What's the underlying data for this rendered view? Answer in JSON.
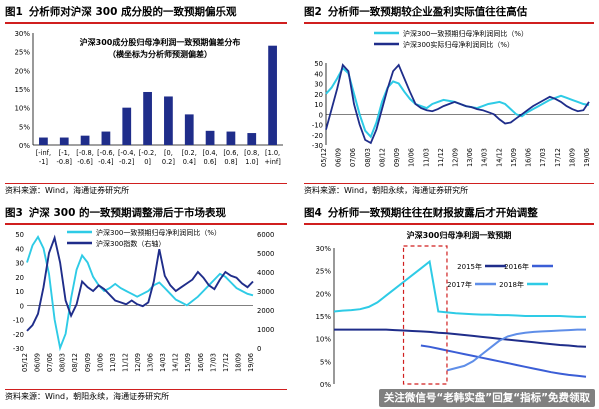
{
  "panels": [
    {
      "num": "图1",
      "title": "分析师对沪深 300 成分股的一致预期偏乐观",
      "source": "资料来源：Wind，海通证券研究所"
    },
    {
      "num": "图2",
      "title": "分析师一致预期较企业盈利实际值往往高估",
      "source": "资料来源：Wind，朝阳永续，海通证券研究所"
    },
    {
      "num": "图3",
      "title": "沪深 300 的一致预期调整滞后于市场表现",
      "source": "资料来源：Wind，朝阳永续，海通证券研究所"
    },
    {
      "num": "图4",
      "title": "分析师一致预期往往在财报披露后才开始调整",
      "source": "资料来源：Wind，朝阳永续，海通证券研究所"
    }
  ],
  "watermark": "关注微信号“老韩实盘”回复“指标”免费领取",
  "colors": {
    "navy": "#1f2d8a",
    "cyan": "#2ecbe6",
    "red": "#d01f1f",
    "royal": "#3b5ed6"
  },
  "chart_data": [
    {
      "type": "bar",
      "title": "沪深300成分股归母净利润一致预期偏差分布",
      "subtitle": "（横坐标为分析师预测偏差）",
      "categories": [
        "[-inf, -1]",
        "[-1, -0.8]",
        "[-0.8, -0.6]",
        "[-0.6, -0.4]",
        "[-0.4, -0.2]",
        "[-0.2, 0]",
        "[0, 0.2]",
        "[0.2, 0.4]",
        "[0.4, 0.6]",
        "[0.6, 0.8]",
        "[0.8, 1.0]",
        "[1.0, +inf]"
      ],
      "values": [
        2.0,
        2.0,
        2.5,
        3.6,
        10.0,
        14.2,
        13.0,
        8.2,
        3.8,
        3.6,
        3.2,
        26.6
      ],
      "yticks": [
        "0%",
        "5%",
        "10%",
        "15%",
        "20%",
        "25%",
        "30%"
      ],
      "ylim": [
        0,
        30
      ],
      "color": "#1f2d8a"
    },
    {
      "type": "line",
      "xticks": [
        "05/12",
        "06/09",
        "07/06",
        "08/03",
        "08/12",
        "09/09",
        "10/06",
        "11/03",
        "11/12",
        "12/09",
        "13/06",
        "14/03",
        "14/12",
        "15/09",
        "16/06",
        "17/03",
        "17/12",
        "18/09",
        "19/06"
      ],
      "yticks": [
        "-30",
        "-20",
        "-10",
        "0",
        "10",
        "20",
        "30",
        "40",
        "50"
      ],
      "ylim": [
        -30,
        50
      ],
      "series": [
        {
          "name": "沪深300一致预期归母净利润同比（%）",
          "color": "#2ecbe6",
          "values": [
            20,
            26,
            35,
            45,
            40,
            20,
            0,
            -16,
            -22,
            -8,
            12,
            26,
            32,
            30,
            22,
            15,
            10,
            8,
            6,
            10,
            12,
            14,
            13,
            12,
            10,
            8,
            7,
            6,
            8,
            10,
            11,
            12,
            10,
            5,
            0,
            -2,
            2,
            5,
            8,
            11,
            14,
            16,
            18,
            16,
            14,
            12,
            10,
            9
          ]
        },
        {
          "name": "沪深300实际归母净利润同比（%）",
          "color": "#1f2d8a",
          "values": [
            -15,
            5,
            25,
            48,
            42,
            10,
            -10,
            -25,
            -28,
            -15,
            5,
            25,
            42,
            48,
            35,
            22,
            10,
            6,
            4,
            3,
            5,
            8,
            10,
            12,
            10,
            8,
            7,
            5,
            4,
            2,
            0,
            -5,
            -9,
            -8,
            -4,
            0,
            4,
            8,
            11,
            14,
            17,
            15,
            12,
            8,
            5,
            3,
            4,
            12
          ]
        }
      ]
    },
    {
      "type": "line",
      "xticks": [
        "05/12",
        "06/09",
        "07/06",
        "08/03",
        "08/12",
        "09/09",
        "10/06",
        "11/03",
        "11/12",
        "12/09",
        "13/06",
        "14/03",
        "14/12",
        "15/09",
        "16/06",
        "17/03",
        "17/12",
        "18/09",
        "19/06"
      ],
      "yticks_left": [
        "-30",
        "-20",
        "-10",
        "0",
        "10",
        "20",
        "30",
        "40",
        "50"
      ],
      "ylim_left": [
        -30,
        50
      ],
      "yticks_right": [
        "0",
        "1000",
        "2000",
        "3000",
        "4000",
        "5000",
        "6000"
      ],
      "ylim_right": [
        0,
        6000
      ],
      "series": [
        {
          "name": "沪深300一致预期归母净利润同比（%）",
          "axis": "left",
          "color": "#2ecbe6",
          "values": [
            30,
            42,
            48,
            40,
            22,
            -10,
            -30,
            -20,
            5,
            25,
            35,
            30,
            20,
            14,
            10,
            12,
            15,
            12,
            10,
            8,
            6,
            8,
            10,
            14,
            16,
            12,
            8,
            4,
            2,
            0,
            3,
            6,
            10,
            14,
            18,
            22,
            20,
            16,
            12,
            10,
            8,
            7
          ]
        },
        {
          "name": "沪深300指数（右轴）",
          "axis": "right",
          "color": "#1f2d8a",
          "values": [
            900,
            1200,
            1800,
            3200,
            5000,
            5800,
            4500,
            2500,
            1700,
            2300,
            3500,
            3200,
            3000,
            3300,
            3100,
            2800,
            2500,
            2400,
            2300,
            2500,
            2300,
            2200,
            2400,
            3500,
            5200,
            3800,
            3300,
            3000,
            3200,
            3400,
            3600,
            4000,
            3700,
            3300,
            3100,
            3600,
            4000,
            3800,
            3700,
            3400,
            3200,
            3500
          ]
        }
      ]
    },
    {
      "type": "line",
      "title": "沪深300归母净利润一致预期",
      "yticks": [
        "0%",
        "5%",
        "10%",
        "15%",
        "20%",
        "25%",
        "30%"
      ],
      "ylim": [
        0,
        30
      ],
      "series": [
        {
          "name": "2015年",
          "color": "#1f2d8a",
          "values": [
            12,
            12,
            12,
            12,
            12,
            12,
            12,
            11.9,
            11.8,
            11.7,
            11.6,
            11.5,
            11.3,
            11.2,
            11,
            10.8,
            10.6,
            10.4,
            10.2,
            10,
            9.8,
            9.6,
            9.4,
            9.2,
            9,
            8.8,
            8.6,
            8.5,
            8.3,
            8.2
          ]
        },
        {
          "name": "2016年",
          "color": "#3b5ed6",
          "values": [
            null,
            null,
            null,
            null,
            null,
            null,
            null,
            null,
            null,
            null,
            8.5,
            8.2,
            7.8,
            7.4,
            7,
            6.6,
            6.2,
            5.8,
            5.4,
            5,
            4.6,
            4.2,
            3.8,
            3.4,
            3.0,
            2.6,
            2.3,
            2.0,
            1.8,
            1.6
          ]
        },
        {
          "name": "2017年",
          "color": "#5f8ee8",
          "values": [
            null,
            null,
            null,
            null,
            null,
            null,
            null,
            null,
            null,
            null,
            null,
            null,
            null,
            3,
            3.5,
            4,
            5,
            6.5,
            8,
            9.5,
            10.5,
            11,
            11.3,
            11.5,
            11.6,
            11.7,
            11.8,
            11.9,
            12,
            12
          ]
        },
        {
          "name": "2018年",
          "color": "#2ecbe6",
          "values": [
            16,
            16.2,
            16.3,
            16.5,
            17,
            18,
            19.5,
            21,
            22.5,
            24,
            25.5,
            27,
            16,
            15.8,
            15.6,
            15.5,
            15.4,
            15.3,
            15.3,
            15.2,
            15.2,
            15.1,
            15,
            15,
            15,
            15,
            15,
            14.9,
            14.8,
            14.8
          ]
        }
      ],
      "highlight_x_range": [
        8,
        13
      ]
    }
  ]
}
